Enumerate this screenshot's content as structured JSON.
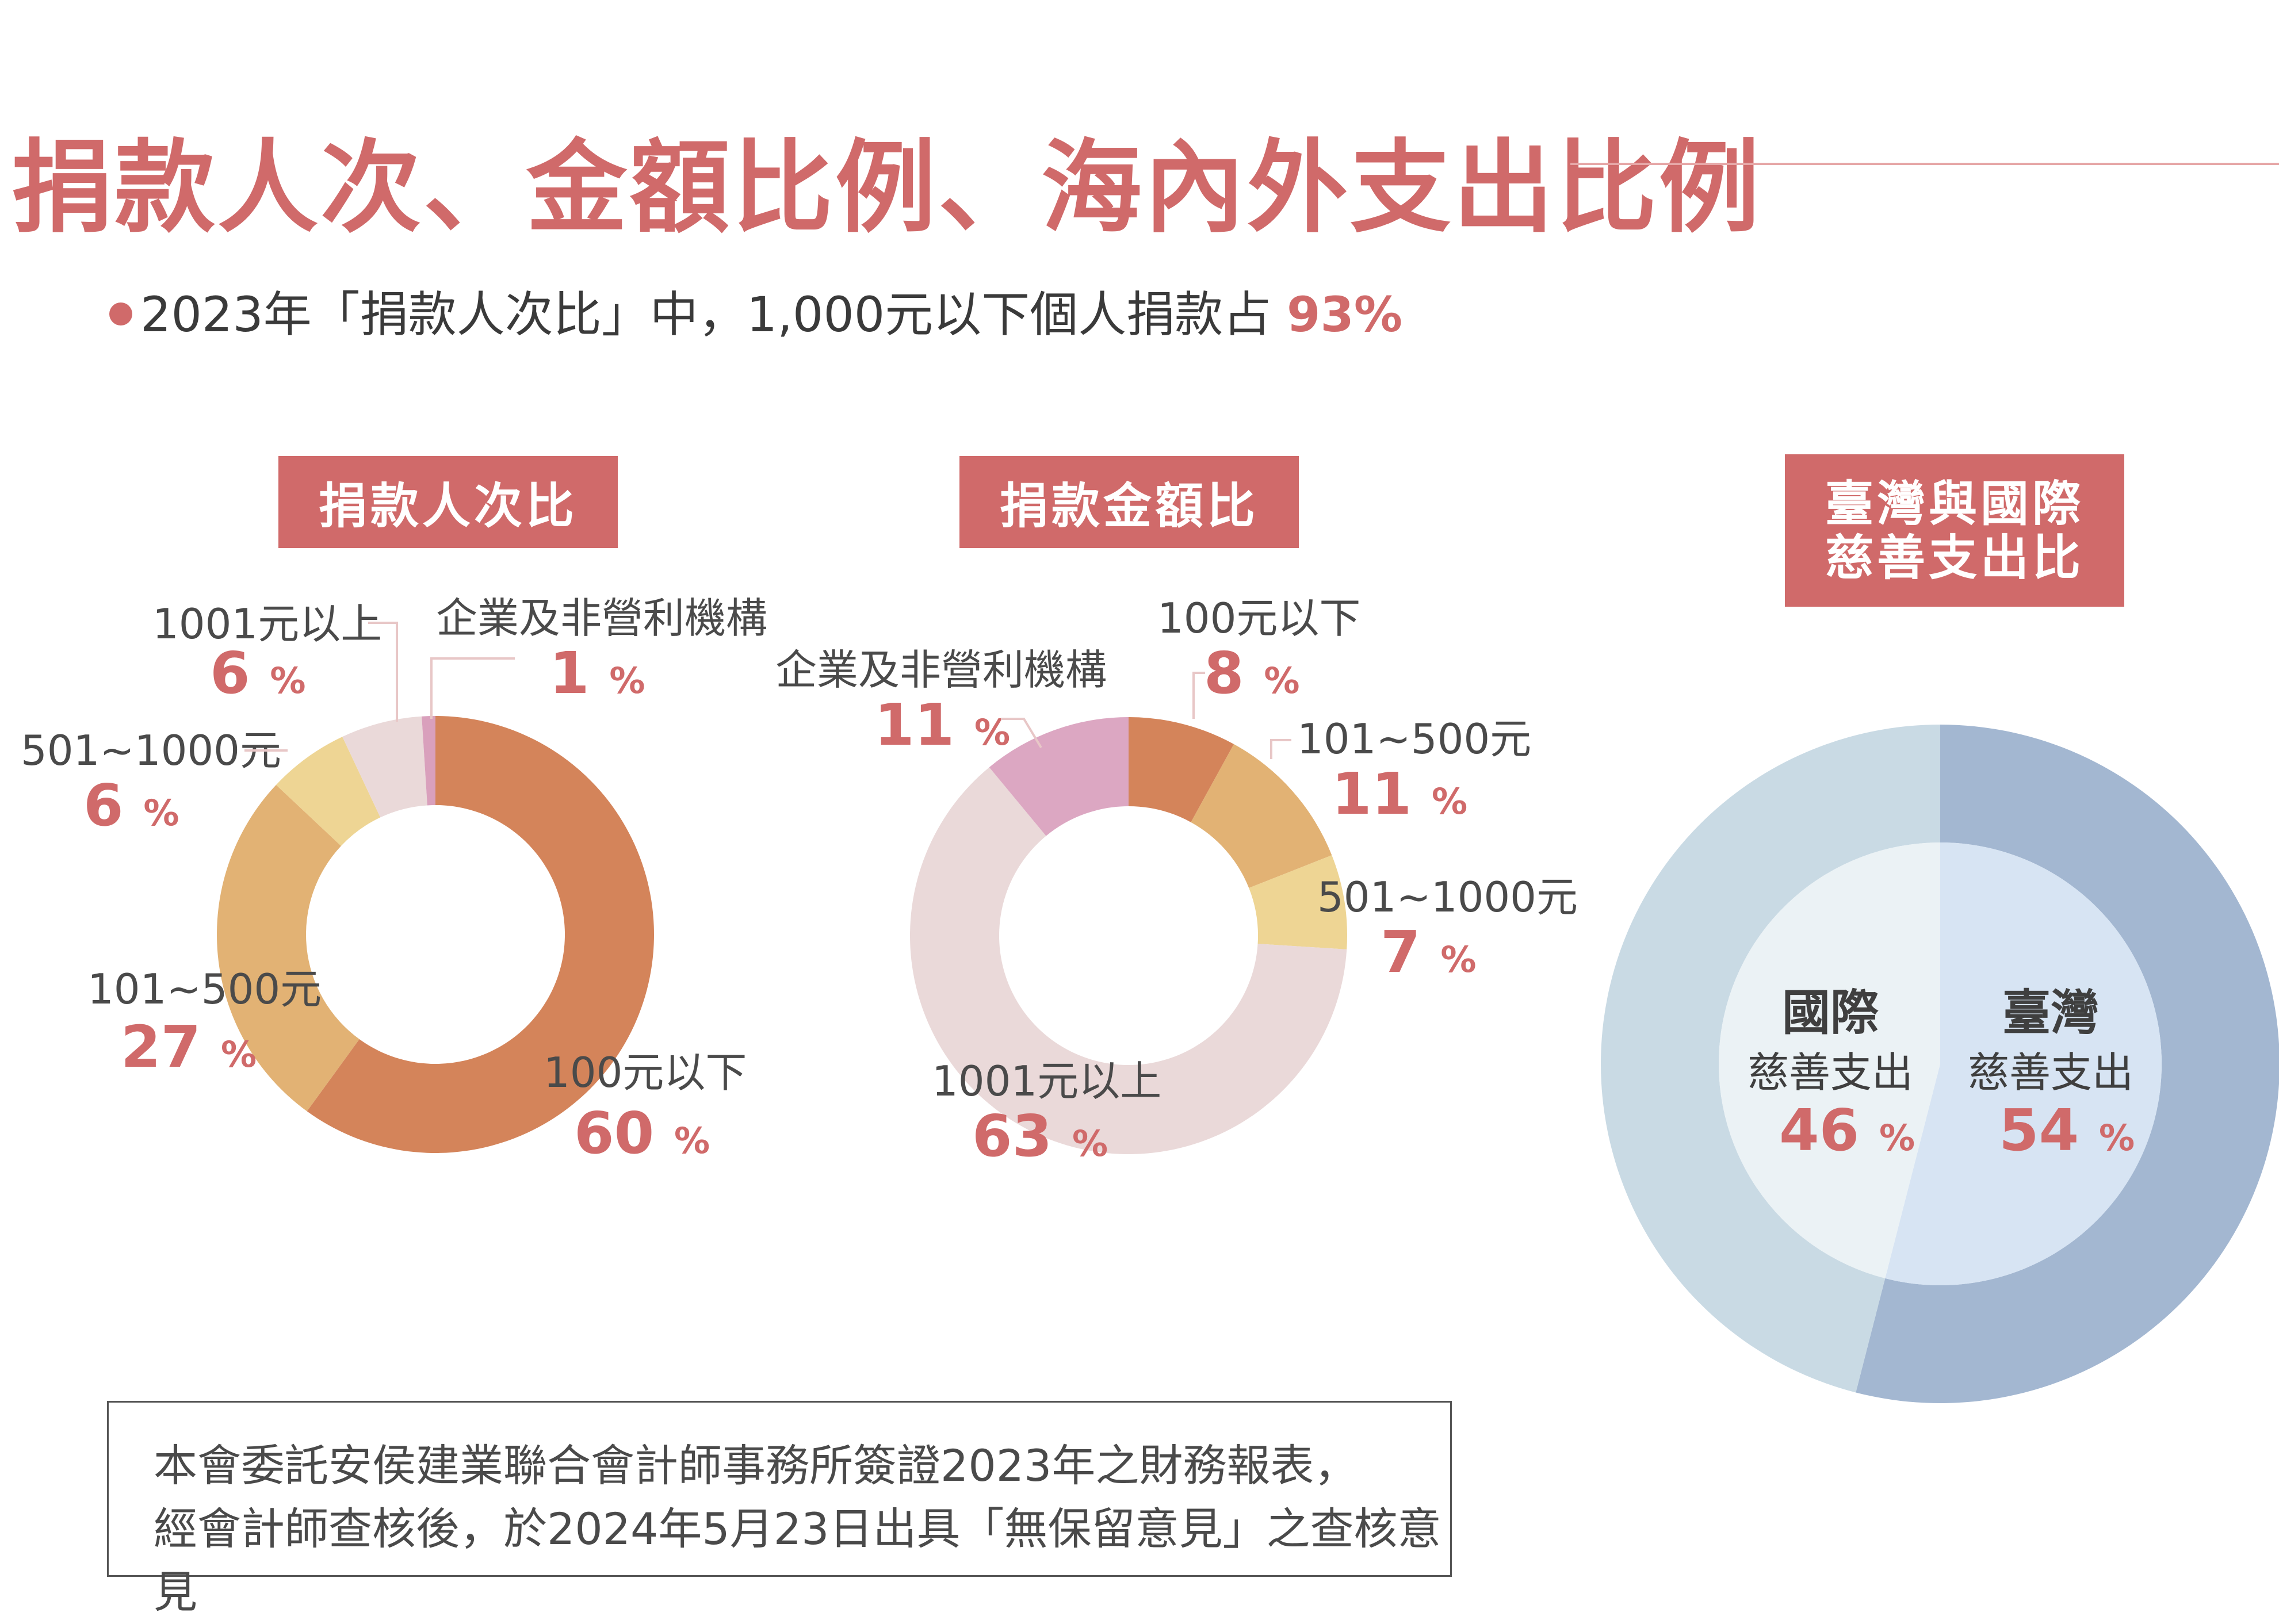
{
  "title": "捐款人次、金額比例、海內外支出比例",
  "subtitle": {
    "text": "2023年「捐款人次比」中，1,000元以下個人捐款占",
    "highlight": "93%"
  },
  "tags": {
    "count": "捐款人次比",
    "amount": "捐款金額比",
    "expense_line1": "臺灣與國際",
    "expense_line2": "慈善支出比"
  },
  "percent_sign": "%",
  "chart_data": [
    {
      "type": "donut",
      "title": "捐款人次比",
      "unit": "%",
      "slices": [
        {
          "label": "100元以下",
          "value": 60,
          "color": "#d4845a"
        },
        {
          "label": "101~500元",
          "value": 27,
          "color": "#e2b274"
        },
        {
          "label": "501~1000元",
          "value": 6,
          "color": "#eed594"
        },
        {
          "label": "1001元以上",
          "value": 6,
          "color": "#ead9d9"
        },
        {
          "label": "企業及非營利機構",
          "value": 1,
          "color": "#d9a0bc"
        }
      ]
    },
    {
      "type": "donut",
      "title": "捐款金額比",
      "unit": "%",
      "slices": [
        {
          "label": "100元以下",
          "value": 8,
          "color": "#d4845a"
        },
        {
          "label": "101~500元",
          "value": 11,
          "color": "#e2b274"
        },
        {
          "label": "501~1000元",
          "value": 7,
          "color": "#eed594"
        },
        {
          "label": "1001元以上",
          "value": 63,
          "color": "#ead9d9"
        },
        {
          "label": "企業及非營利機構",
          "value": 11,
          "color": "#dca7c2"
        }
      ]
    },
    {
      "type": "pie",
      "title": "臺灣與國際慈善支出比",
      "unit": "%",
      "slices": [
        {
          "label": "臺灣",
          "sublabel": "慈善支出",
          "value": 54,
          "color": "#a3b7d1",
          "inner_color": "#d7e4f3"
        },
        {
          "label": "國際",
          "sublabel": "慈善支出",
          "value": 46,
          "color": "#c9dae4",
          "inner_color": "#ebf2f5"
        }
      ]
    }
  ],
  "note": {
    "line1": "本會委託安侯建業聯合會計師事務所簽證2023年之財務報表，",
    "line2": "經會計師查核後，於2024年5月23日出具「無保留意見」之查核意見"
  },
  "colors": {
    "accent": "#d06a6a",
    "label_text": "#4a4a4a",
    "leader": "#e8c7c7"
  }
}
